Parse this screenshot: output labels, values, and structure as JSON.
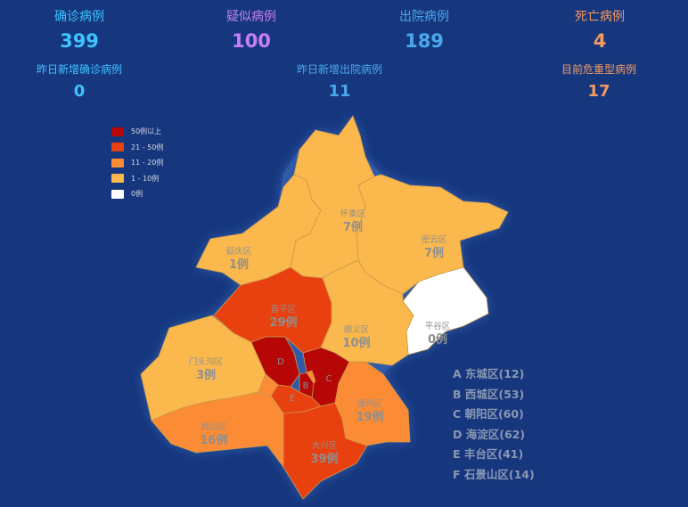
{
  "stats": {
    "confirmed": {
      "label": "确诊病例",
      "value": "399",
      "label_color": "#3ec3ff",
      "value_color": "#3ec3ff"
    },
    "suspected": {
      "label": "疑似病例",
      "value": "100",
      "label_color": "#c67ff4",
      "value_color": "#c67ff4"
    },
    "discharged": {
      "label": "出院病例",
      "value": "189",
      "label_color": "#4aa8ec",
      "value_color": "#4aa8ec"
    },
    "deaths": {
      "label": "死亡病例",
      "value": "4",
      "label_color": "#f39a5f",
      "value_color": "#f39a5f"
    },
    "new_confirmed": {
      "label": "昨日新增确诊病例",
      "value": "0",
      "label_color": "#3ec3ff",
      "value_color": "#3ec3ff"
    },
    "new_discharged": {
      "label": "昨日新增出院病例",
      "value": "11",
      "label_color": "#4aa8ec",
      "value_color": "#4aa8ec"
    },
    "critical": {
      "label": "目前危重型病例",
      "value": "17",
      "label_color": "#f39a5f",
      "value_color": "#f39a5f"
    }
  },
  "legend": [
    {
      "label": "50例以上",
      "color": "#b60606"
    },
    {
      "label": "21 - 50例",
      "color": "#e9400f"
    },
    {
      "label": "11 - 20例",
      "color": "#fb8b35"
    },
    {
      "label": "1 - 10例",
      "color": "#fbb84c"
    },
    {
      "label": "0例",
      "color": "#ffffff"
    }
  ],
  "districts": {
    "huairou": {
      "name": "怀柔区",
      "count": "7例"
    },
    "miyun": {
      "name": "密云区",
      "count": "7例"
    },
    "yanqing": {
      "name": "延庆区",
      "count": "1例"
    },
    "pinggu": {
      "name": "平谷区",
      "count": "0例"
    },
    "changping": {
      "name": "昌平区",
      "count": "29例"
    },
    "shunyi": {
      "name": "顺义区",
      "count": "10例"
    },
    "mentougou": {
      "name": "门头沟区",
      "count": "3例"
    },
    "tongzhou": {
      "name": "通州区",
      "count": "19例"
    },
    "fangshan": {
      "name": "房山区",
      "count": "16例"
    },
    "daxing": {
      "name": "大兴区",
      "count": "39例"
    }
  },
  "district_letters": {
    "A": "A",
    "B": "B",
    "C": "C",
    "D": "D",
    "E": "E",
    "F": "F"
  },
  "key_list": [
    "A 东城区(12)",
    "B 西城区(53)",
    "C 朝阳区(60)",
    "D 海淀区(62)",
    "E 丰台区(41)",
    "F 石景山区(14)"
  ]
}
